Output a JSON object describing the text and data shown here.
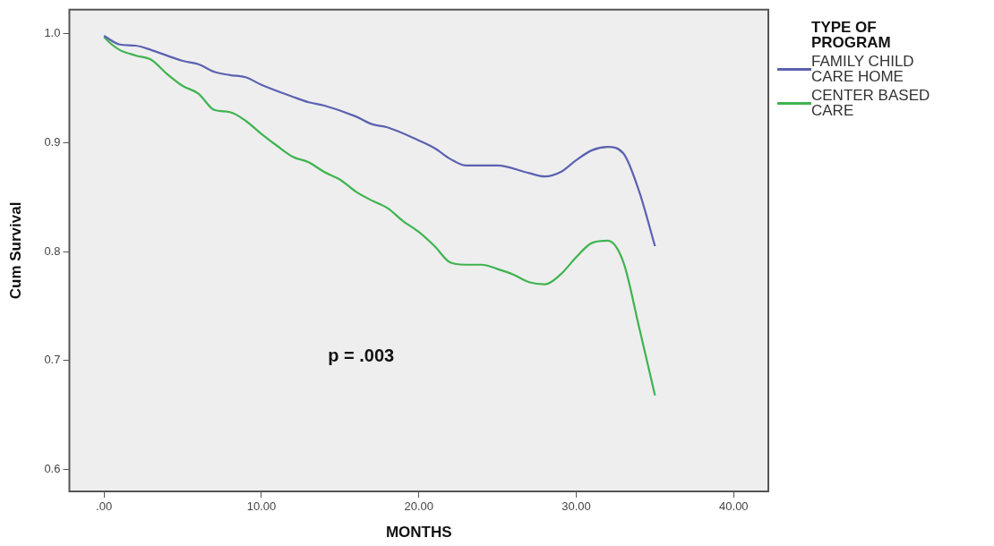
{
  "chart_data": {
    "type": "line",
    "xlabel": "MONTHS",
    "ylabel": "Cum Survival",
    "legend_title": "TYPE OF PROGRAM",
    "annotations": [
      "p = .003"
    ],
    "xlim": [
      -2.2,
      42.2
    ],
    "ylim": [
      0.58,
      1.022
    ],
    "xticks": [
      {
        "value": 0,
        "label": ".00"
      },
      {
        "value": 10,
        "label": "10.00"
      },
      {
        "value": 20,
        "label": "20.00"
      },
      {
        "value": 30,
        "label": "30.00"
      },
      {
        "value": 40,
        "label": "40.00"
      }
    ],
    "yticks": [
      {
        "value": 0.6,
        "label": "0.6"
      },
      {
        "value": 0.7,
        "label": "0.7"
      },
      {
        "value": 0.8,
        "label": "0.8"
      },
      {
        "value": 0.9,
        "label": "0.9"
      },
      {
        "value": 1,
        "label": "1.0"
      }
    ],
    "grid": false,
    "legend": "right",
    "marker": "none",
    "line_style": "solid",
    "series": [
      {
        "name": "FAMILY CHILD CARE HOME",
        "color": "#5b62b0",
        "x": [
          0,
          1,
          2,
          3,
          5,
          6,
          7,
          8,
          9,
          10,
          12,
          13,
          14,
          16,
          17,
          18,
          20,
          21,
          22,
          23,
          25,
          27,
          28,
          29,
          30,
          31,
          32,
          33,
          34,
          35
        ],
        "values": [
          0.998,
          0.99,
          0.989,
          0.985,
          0.975,
          0.972,
          0.965,
          0.962,
          0.96,
          0.953,
          0.942,
          0.937,
          0.934,
          0.924,
          0.917,
          0.914,
          0.902,
          0.895,
          0.885,
          0.879,
          0.879,
          0.872,
          0.869,
          0.873,
          0.884,
          0.893,
          0.896,
          0.89,
          0.855,
          0.805
        ]
      },
      {
        "name": "CENTER BASED CARE",
        "color": "#3fb34f",
        "x": [
          0,
          0.5,
          1,
          2,
          3,
          4,
          5,
          6,
          7,
          8,
          9,
          10,
          11,
          12,
          13,
          14,
          15,
          16,
          17,
          18,
          19,
          20,
          21,
          22,
          23,
          24,
          25,
          26,
          27,
          28,
          29,
          30,
          31,
          32,
          33,
          34,
          35
        ],
        "values": [
          0.997,
          0.99,
          0.985,
          0.98,
          0.976,
          0.963,
          0.952,
          0.945,
          0.93,
          0.928,
          0.92,
          0.908,
          0.897,
          0.887,
          0.882,
          0.873,
          0.866,
          0.855,
          0.847,
          0.84,
          0.828,
          0.818,
          0.805,
          0.79,
          0.788,
          0.788,
          0.784,
          0.779,
          0.772,
          0.77,
          0.779,
          0.795,
          0.808,
          0.81,
          0.79,
          0.73,
          0.668
        ]
      }
    ]
  }
}
